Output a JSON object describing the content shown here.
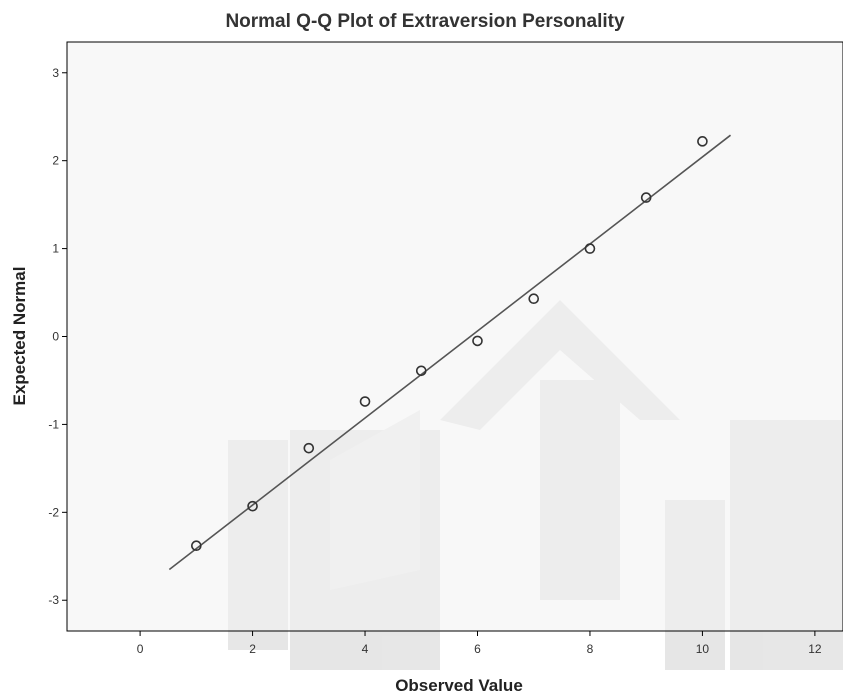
{
  "chart_data": {
    "type": "scatter",
    "title": "Normal Q-Q Plot of Extraversion Personality",
    "xlabel": "Observed Value",
    "ylabel": "Expected Normal",
    "xlim": [
      -1.3,
      12.5
    ],
    "ylim": [
      -3.35,
      3.35
    ],
    "x_ticks": [
      0,
      2,
      4,
      6,
      8,
      10,
      12
    ],
    "y_ticks": [
      3,
      2,
      1,
      0,
      -1,
      -2,
      -3
    ],
    "series": [
      {
        "points": [
          {
            "x": 1,
            "y": -2.38
          },
          {
            "x": 2,
            "y": -1.93
          },
          {
            "x": 3,
            "y": -1.27
          },
          {
            "x": 4,
            "y": -0.74
          },
          {
            "x": 5,
            "y": -0.39
          },
          {
            "x": 6,
            "y": -0.05
          },
          {
            "x": 7,
            "y": 0.43
          },
          {
            "x": 8,
            "y": 1.0
          },
          {
            "x": 9,
            "y": 1.58
          },
          {
            "x": 10,
            "y": 2.22
          }
        ]
      }
    ],
    "reference_line": {
      "x": [
        0.52,
        10.5
      ],
      "y": [
        -2.65,
        2.29
      ]
    },
    "grid": false,
    "colors": {
      "plot_background": "#f2f2f2",
      "marker": "#333333",
      "line": "#555555"
    }
  }
}
